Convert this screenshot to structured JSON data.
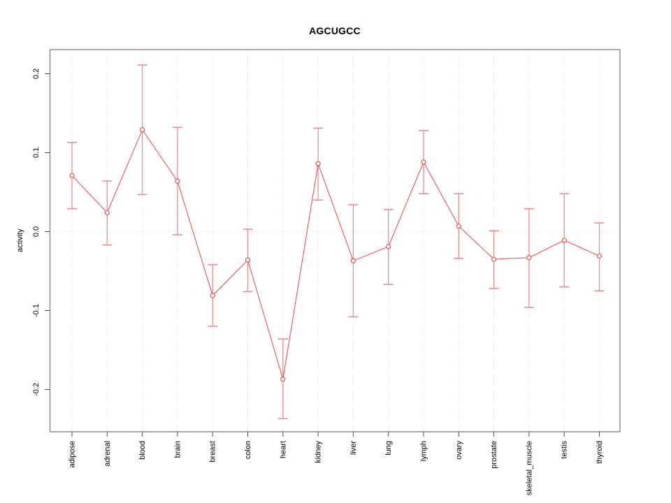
{
  "colors": {
    "series": "#ef4444",
    "error_bar": "#f28b8b",
    "point_fill": "#ffffff",
    "grid": "#dcdcdc",
    "frame": "#737373",
    "tick": "#4d4d4d",
    "text": "#000000",
    "background": "#ffffff"
  },
  "axes": {
    "y_ticks": [
      -0.2,
      -0.1,
      0.0,
      0.1,
      0.2
    ],
    "y_tick_labels": [
      "-0.2",
      "-0.1",
      "0.0",
      "0.1",
      "0.2"
    ],
    "zero_line": 0.0
  },
  "chart_data": {
    "type": "line",
    "title": "AGCUGCC",
    "xlabel": "",
    "ylabel": "activity",
    "ylim": [
      -0.25,
      0.23
    ],
    "grid": "dotted vertical gridline at each category plus dotted horizontal line at y=0",
    "legend": "none",
    "marker": "open-circle",
    "error_bars": true,
    "categories": [
      "adipose",
      "adrenal",
      "blood",
      "brain",
      "breast",
      "colon",
      "heart",
      "kidney",
      "liver",
      "lung",
      "lymph",
      "ovary",
      "prostate",
      "skeletal_muscle",
      "testis",
      "thyroid"
    ],
    "series": [
      {
        "name": "activity",
        "values": [
          0.071,
          0.024,
          0.129,
          0.064,
          -0.081,
          -0.036,
          -0.187,
          0.086,
          -0.037,
          -0.019,
          0.088,
          0.007,
          -0.035,
          -0.033,
          -0.011,
          -0.031
        ],
        "error_upper": [
          0.113,
          0.064,
          0.211,
          0.132,
          -0.042,
          0.003,
          -0.136,
          0.131,
          0.034,
          0.028,
          0.128,
          0.048,
          0.001,
          0.029,
          0.048,
          0.011
        ],
        "error_lower": [
          0.029,
          -0.017,
          0.047,
          -0.004,
          -0.12,
          -0.076,
          -0.237,
          0.04,
          -0.108,
          -0.067,
          0.048,
          -0.034,
          -0.072,
          -0.096,
          -0.07,
          -0.075
        ]
      }
    ]
  }
}
